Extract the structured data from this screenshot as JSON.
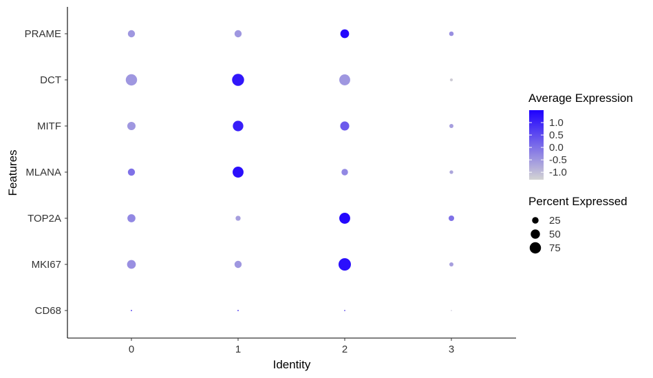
{
  "chart_data": {
    "type": "dot",
    "xlabel": "Identity",
    "ylabel": "Features",
    "categories": [
      "0",
      "1",
      "2",
      "3"
    ],
    "features": [
      "PRAME",
      "DCT",
      "MITF",
      "MLANA",
      "TOP2A",
      "MKI67",
      "CD68"
    ],
    "points": [
      {
        "feature": "PRAME",
        "identity": "0",
        "avg_exp": -0.5,
        "pct_exp": 30
      },
      {
        "feature": "PRAME",
        "identity": "1",
        "avg_exp": -0.5,
        "pct_exp": 30
      },
      {
        "feature": "PRAME",
        "identity": "2",
        "avg_exp": 1.4,
        "pct_exp": 45
      },
      {
        "feature": "PRAME",
        "identity": "3",
        "avg_exp": -0.4,
        "pct_exp": 12
      },
      {
        "feature": "DCT",
        "identity": "0",
        "avg_exp": -0.5,
        "pct_exp": 75
      },
      {
        "feature": "DCT",
        "identity": "1",
        "avg_exp": 1.2,
        "pct_exp": 85
      },
      {
        "feature": "DCT",
        "identity": "2",
        "avg_exp": -0.5,
        "pct_exp": 70
      },
      {
        "feature": "DCT",
        "identity": "3",
        "avg_exp": -1.2,
        "pct_exp": 5
      },
      {
        "feature": "MITF",
        "identity": "0",
        "avg_exp": -0.5,
        "pct_exp": 40
      },
      {
        "feature": "MITF",
        "identity": "1",
        "avg_exp": 1.1,
        "pct_exp": 65
      },
      {
        "feature": "MITF",
        "identity": "2",
        "avg_exp": 0.3,
        "pct_exp": 48
      },
      {
        "feature": "MITF",
        "identity": "3",
        "avg_exp": -0.6,
        "pct_exp": 10
      },
      {
        "feature": "MLANA",
        "identity": "0",
        "avg_exp": 0.0,
        "pct_exp": 30
      },
      {
        "feature": "MLANA",
        "identity": "1",
        "avg_exp": 1.3,
        "pct_exp": 70
      },
      {
        "feature": "MLANA",
        "identity": "2",
        "avg_exp": -0.3,
        "pct_exp": 25
      },
      {
        "feature": "MLANA",
        "identity": "3",
        "avg_exp": -0.7,
        "pct_exp": 8
      },
      {
        "feature": "TOP2A",
        "identity": "0",
        "avg_exp": -0.3,
        "pct_exp": 38
      },
      {
        "feature": "TOP2A",
        "identity": "1",
        "avg_exp": -0.6,
        "pct_exp": 15
      },
      {
        "feature": "TOP2A",
        "identity": "2",
        "avg_exp": 1.4,
        "pct_exp": 70
      },
      {
        "feature": "TOP2A",
        "identity": "3",
        "avg_exp": 0.0,
        "pct_exp": 18
      },
      {
        "feature": "MKI67",
        "identity": "0",
        "avg_exp": -0.4,
        "pct_exp": 45
      },
      {
        "feature": "MKI67",
        "identity": "1",
        "avg_exp": -0.5,
        "pct_exp": 30
      },
      {
        "feature": "MKI67",
        "identity": "2",
        "avg_exp": 1.3,
        "pct_exp": 90
      },
      {
        "feature": "MKI67",
        "identity": "3",
        "avg_exp": -0.6,
        "pct_exp": 10
      },
      {
        "feature": "CD68",
        "identity": "0",
        "avg_exp": 0.6,
        "pct_exp": 1
      },
      {
        "feature": "CD68",
        "identity": "1",
        "avg_exp": 0.6,
        "pct_exp": 1
      },
      {
        "feature": "CD68",
        "identity": "2",
        "avg_exp": 0.2,
        "pct_exp": 1
      },
      {
        "feature": "CD68",
        "identity": "3",
        "avg_exp": -1.1,
        "pct_exp": 0.5
      }
    ],
    "color_scale": {
      "title": "Average Expression",
      "low": "#d3d3d3",
      "high": "#1e00ff",
      "domain": [
        -1.3,
        1.5
      ],
      "ticks": [
        "1.0",
        "0.5",
        "0.0",
        "-0.5",
        "-1.0"
      ],
      "tick_values": [
        1.0,
        0.5,
        0.0,
        -0.5,
        -1.0
      ]
    },
    "size_scale": {
      "title": "Percent Expressed",
      "ticks": [
        "25",
        "50",
        "75"
      ],
      "tick_values": [
        25,
        50,
        75
      ],
      "max_value": 90
    },
    "grid": false,
    "legend_position": "right"
  }
}
